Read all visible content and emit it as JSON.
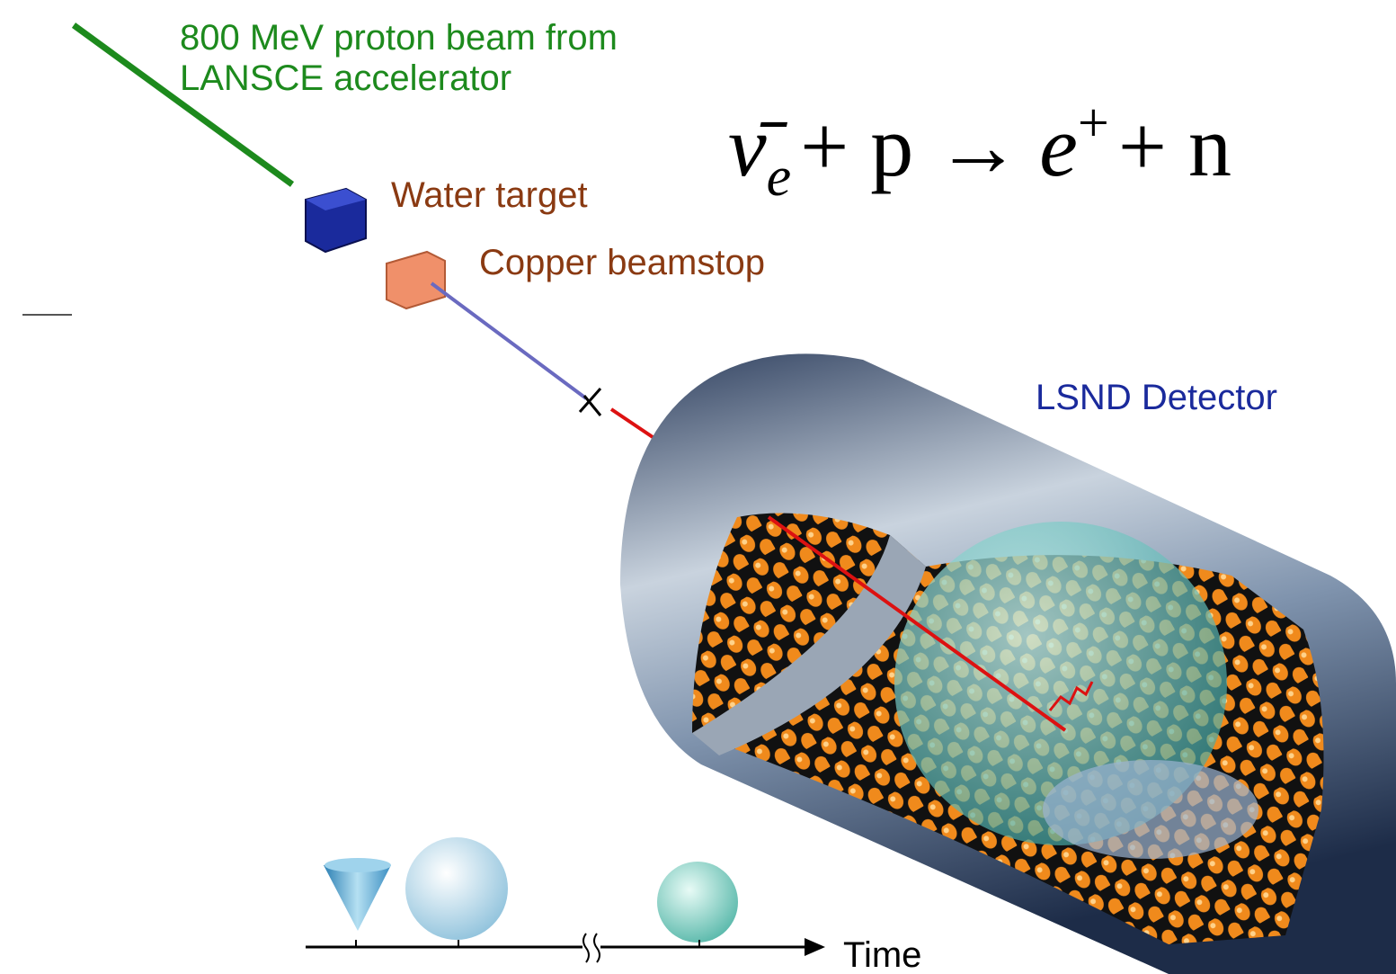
{
  "beam_label": [
    "800 MeV proton beam from",
    "LANSCE accelerator"
  ],
  "water_target": "Water target",
  "copper_beamstop": "Copper beamstop",
  "detector": "LSND Detector",
  "time_axis": "Time",
  "equation": {
    "parts": [
      "ν̄",
      "e",
      "+ p →",
      "e",
      "+",
      "+ n"
    ]
  }
}
